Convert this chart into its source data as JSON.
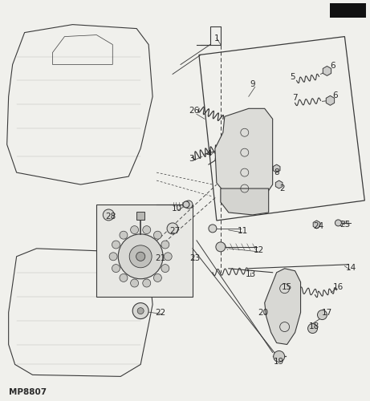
{
  "background_color": "#f0f0ec",
  "line_color": "#3a3a3a",
  "label_color": "#2a2a2a",
  "fig_width": 4.61,
  "fig_height": 5.0,
  "dpi": 100,
  "watermark": "MP8807"
}
